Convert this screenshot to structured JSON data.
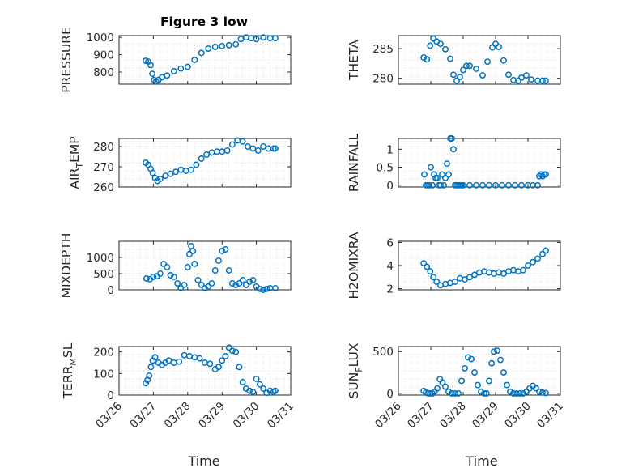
{
  "figure": {
    "title": "Figure 3 low",
    "x_axis_label": "Time",
    "x_tick_labels": [
      "03/26",
      "03/27",
      "03/28",
      "03/29",
      "03/30",
      "03/31"
    ]
  },
  "colors": {
    "marker": "#0072BD",
    "grid": "#d9d9d9",
    "axes": "#262626",
    "background": "#ffffff"
  },
  "chart_data": [
    {
      "type": "scatter",
      "panel": "pressure",
      "ylabel": "PRESSURE",
      "title": "Figure 3 low",
      "xlim": [
        0,
        5
      ],
      "ylim": [
        730,
        1010
      ],
      "yticks": [
        800,
        900,
        1000
      ],
      "ytick_labels": [
        "800",
        "900",
        "1000"
      ],
      "xtick_labels": [],
      "grid": true,
      "series": [
        {
          "marker": "circle",
          "x": [
            0.78,
            0.85,
            0.92,
            0.97,
            1.02,
            1.08,
            1.15,
            1.25,
            1.4,
            1.6,
            1.8,
            2.0,
            2.2,
            2.4,
            2.6,
            2.8,
            3.0,
            3.2,
            3.4,
            3.55,
            3.7,
            3.85,
            4.0,
            4.2,
            4.4,
            4.55
          ],
          "y": [
            865,
            860,
            840,
            790,
            755,
            745,
            755,
            770,
            780,
            805,
            820,
            830,
            870,
            910,
            935,
            945,
            950,
            955,
            960,
            990,
            1000,
            995,
            990,
            1000,
            995,
            995
          ]
        }
      ]
    },
    {
      "type": "scatter",
      "panel": "theta",
      "ylabel": "THETA",
      "xlim": [
        0,
        5
      ],
      "ylim": [
        279,
        287.2
      ],
      "yticks": [
        280,
        285
      ],
      "ytick_labels": [
        "280",
        "285"
      ],
      "xtick_labels": [],
      "grid": true,
      "series": [
        {
          "marker": "circle",
          "x": [
            0.78,
            0.88,
            0.98,
            1.08,
            1.18,
            1.3,
            1.45,
            1.6,
            1.7,
            1.8,
            1.9,
            2.0,
            2.1,
            2.2,
            2.4,
            2.6,
            2.75,
            2.9,
            3.0,
            3.1,
            3.25,
            3.4,
            3.55,
            3.7,
            3.8,
            3.95,
            4.1,
            4.3,
            4.45,
            4.55
          ],
          "y": [
            283.5,
            283.2,
            285.5,
            286.7,
            286.2,
            285.8,
            284.9,
            283.3,
            280.6,
            279.6,
            280.2,
            281.4,
            282.1,
            282.1,
            281.6,
            280.5,
            282.8,
            285.2,
            285.8,
            285.3,
            283.0,
            280.6,
            279.7,
            279.6,
            280.1,
            280.5,
            279.8,
            279.6,
            279.6,
            279.6
          ]
        }
      ]
    },
    {
      "type": "scatter",
      "panel": "air_temp",
      "ylabel": "AIRTEMP",
      "ylabel_prefix": "AIR",
      "ylabel_subscript": "T",
      "ylabel_suffix": "EMP",
      "xlim": [
        0,
        5
      ],
      "ylim": [
        260,
        284
      ],
      "yticks": [
        260,
        270,
        280
      ],
      "ytick_labels": [
        "260",
        "270",
        "280"
      ],
      "xtick_labels": [],
      "grid": true,
      "series": [
        {
          "marker": "circle",
          "x": [
            0.78,
            0.85,
            0.92,
            0.98,
            1.05,
            1.12,
            1.2,
            1.35,
            1.5,
            1.65,
            1.8,
            1.95,
            2.1,
            2.25,
            2.4,
            2.55,
            2.7,
            2.85,
            3.0,
            3.15,
            3.3,
            3.45,
            3.6,
            3.75,
            3.9,
            4.05,
            4.2,
            4.35,
            4.5,
            4.55
          ],
          "y": [
            272,
            271,
            269,
            267,
            264.5,
            263,
            264,
            265.5,
            266.5,
            267.5,
            268.5,
            268,
            268.5,
            271,
            274,
            276,
            277,
            277.5,
            277.5,
            278,
            281,
            283,
            282.5,
            280,
            279,
            278,
            280,
            279,
            279,
            279
          ]
        }
      ]
    },
    {
      "type": "scatter",
      "panel": "rainfall",
      "ylabel": "RAINFALL",
      "xlim": [
        0,
        5
      ],
      "ylim": [
        -0.05,
        1.3
      ],
      "yticks": [
        0,
        0.5,
        1
      ],
      "ytick_labels": [
        "0",
        "0.5",
        "1"
      ],
      "xtick_labels": [],
      "grid": true,
      "series": [
        {
          "marker": "circle",
          "x": [
            0.8,
            0.85,
            0.9,
            0.95,
            1.0,
            1.05,
            1.1,
            1.15,
            1.2,
            1.25,
            1.3,
            1.35,
            1.4,
            1.45,
            1.5,
            1.55,
            1.6,
            1.65,
            1.7,
            1.75,
            1.8,
            1.85,
            1.9,
            1.95,
            2.0,
            2.2,
            2.4,
            2.6,
            2.8,
            3.0,
            3.2,
            3.4,
            3.6,
            3.8,
            4.0,
            4.15,
            4.3,
            4.35,
            4.4,
            4.45,
            4.5,
            4.55
          ],
          "y": [
            0.3,
            0.0,
            0.0,
            0.0,
            0.5,
            0.0,
            0.3,
            0.2,
            0.2,
            0.0,
            0.0,
            0.3,
            0.0,
            0.2,
            0.6,
            0.3,
            1.3,
            1.3,
            1.0,
            0.0,
            0.0,
            0.0,
            0.0,
            0.0,
            0.0,
            0.0,
            0.0,
            0.0,
            0.0,
            0.0,
            0.0,
            0.0,
            0.0,
            0.0,
            0.0,
            0.0,
            0.0,
            0.25,
            0.3,
            0.25,
            0.3,
            0.3
          ]
        }
      ]
    },
    {
      "type": "scatter",
      "panel": "mixdepth",
      "ylabel": "MIXDEPTH",
      "xlim": [
        0,
        5
      ],
      "ylim": [
        0,
        1500
      ],
      "yticks": [
        0,
        500,
        1000
      ],
      "ytick_labels": [
        "0",
        "500",
        "1000"
      ],
      "xtick_labels": [],
      "grid": true,
      "series": [
        {
          "marker": "circle",
          "x": [
            0.8,
            0.9,
            1.0,
            1.1,
            1.2,
            1.3,
            1.4,
            1.5,
            1.6,
            1.7,
            1.8,
            1.9,
            2.0,
            2.05,
            2.1,
            2.15,
            2.2,
            2.3,
            2.4,
            2.5,
            2.6,
            2.7,
            2.8,
            2.9,
            3.0,
            3.1,
            3.2,
            3.3,
            3.4,
            3.5,
            3.6,
            3.7,
            3.8,
            3.9,
            4.0,
            4.1,
            4.2,
            4.3,
            4.4,
            4.55
          ],
          "y": [
            350,
            330,
            400,
            420,
            500,
            800,
            700,
            450,
            400,
            200,
            50,
            150,
            700,
            1100,
            1350,
            1200,
            800,
            300,
            150,
            50,
            100,
            200,
            600,
            900,
            1200,
            1250,
            600,
            200,
            150,
            200,
            300,
            150,
            250,
            300,
            100,
            30,
            0,
            30,
            50,
            50
          ]
        }
      ]
    },
    {
      "type": "scatter",
      "panel": "h2omixra",
      "ylabel": "H2OMIXRA",
      "xlim": [
        0,
        5
      ],
      "ylim": [
        1.9,
        6.1
      ],
      "yticks": [
        2,
        4,
        6
      ],
      "ytick_labels": [
        "2",
        "4",
        "6"
      ],
      "xtick_labels": [],
      "grid": true,
      "series": [
        {
          "marker": "circle",
          "x": [
            0.78,
            0.88,
            0.98,
            1.08,
            1.18,
            1.3,
            1.45,
            1.6,
            1.75,
            1.9,
            2.05,
            2.2,
            2.35,
            2.5,
            2.65,
            2.8,
            2.95,
            3.1,
            3.25,
            3.4,
            3.55,
            3.7,
            3.85,
            4.0,
            4.15,
            4.3,
            4.45,
            4.55
          ],
          "y": [
            4.2,
            3.9,
            3.5,
            3.0,
            2.6,
            2.3,
            2.4,
            2.5,
            2.6,
            2.9,
            2.8,
            3.0,
            3.2,
            3.4,
            3.5,
            3.4,
            3.3,
            3.4,
            3.3,
            3.5,
            3.6,
            3.5,
            3.6,
            4.0,
            4.3,
            4.6,
            5.0,
            5.3
          ]
        }
      ]
    },
    {
      "type": "scatter",
      "panel": "terrain",
      "ylabel": "TERRMSL",
      "ylabel_prefix": "TERR",
      "ylabel_subscript": "M",
      "ylabel_suffix": "SL",
      "xlim": [
        0,
        5
      ],
      "ylim": [
        0,
        225
      ],
      "yticks": [
        0,
        100,
        200
      ],
      "ytick_labels": [
        "0",
        "100",
        "200"
      ],
      "xtick_labels": [
        "03/26",
        "03/27",
        "03/28",
        "03/29",
        "03/30",
        "03/31"
      ],
      "grid": true,
      "series": [
        {
          "marker": "circle",
          "x": [
            0.78,
            0.83,
            0.88,
            0.93,
            0.98,
            1.05,
            1.15,
            1.25,
            1.35,
            1.45,
            1.6,
            1.75,
            1.9,
            2.05,
            2.2,
            2.35,
            2.5,
            2.65,
            2.8,
            2.9,
            3.0,
            3.1,
            3.2,
            3.3,
            3.4,
            3.5,
            3.6,
            3.7,
            3.8,
            3.9,
            4.0,
            4.1,
            4.2,
            4.3,
            4.4,
            4.5,
            4.55
          ],
          "y": [
            55,
            70,
            90,
            130,
            160,
            175,
            150,
            140,
            150,
            160,
            150,
            155,
            185,
            180,
            175,
            170,
            150,
            145,
            120,
            130,
            160,
            180,
            220,
            205,
            200,
            130,
            60,
            30,
            20,
            15,
            75,
            50,
            30,
            10,
            20,
            15,
            20
          ]
        }
      ]
    },
    {
      "type": "scatter",
      "panel": "sunflux",
      "ylabel": "SUNFLUX",
      "ylabel_prefix": "SUN",
      "ylabel_subscript": "F",
      "ylabel_suffix": "LUX",
      "xlim": [
        0,
        5
      ],
      "ylim": [
        -20,
        560
      ],
      "yticks": [
        0,
        500
      ],
      "ytick_labels": [
        "0",
        "500"
      ],
      "xtick_labels": [
        "03/26",
        "03/27",
        "03/28",
        "03/29",
        "03/30",
        "03/31"
      ],
      "grid": true,
      "series": [
        {
          "marker": "circle",
          "x": [
            0.78,
            0.85,
            0.92,
            0.98,
            1.05,
            1.12,
            1.2,
            1.28,
            1.36,
            1.45,
            1.55,
            1.65,
            1.75,
            1.85,
            1.95,
            2.05,
            2.15,
            2.25,
            2.35,
            2.45,
            2.55,
            2.65,
            2.72,
            2.8,
            2.88,
            2.95,
            3.05,
            3.15,
            3.25,
            3.35,
            3.45,
            3.55,
            3.65,
            3.75,
            3.85,
            3.95,
            4.05,
            4.15,
            4.25,
            4.35,
            4.45,
            4.55
          ],
          "y": [
            30,
            10,
            0,
            0,
            0,
            20,
            60,
            170,
            130,
            80,
            20,
            0,
            0,
            0,
            150,
            300,
            430,
            410,
            250,
            100,
            20,
            0,
            0,
            150,
            360,
            500,
            510,
            400,
            250,
            100,
            20,
            0,
            0,
            0,
            0,
            20,
            60,
            90,
            60,
            20,
            10,
            5
          ]
        }
      ]
    }
  ]
}
